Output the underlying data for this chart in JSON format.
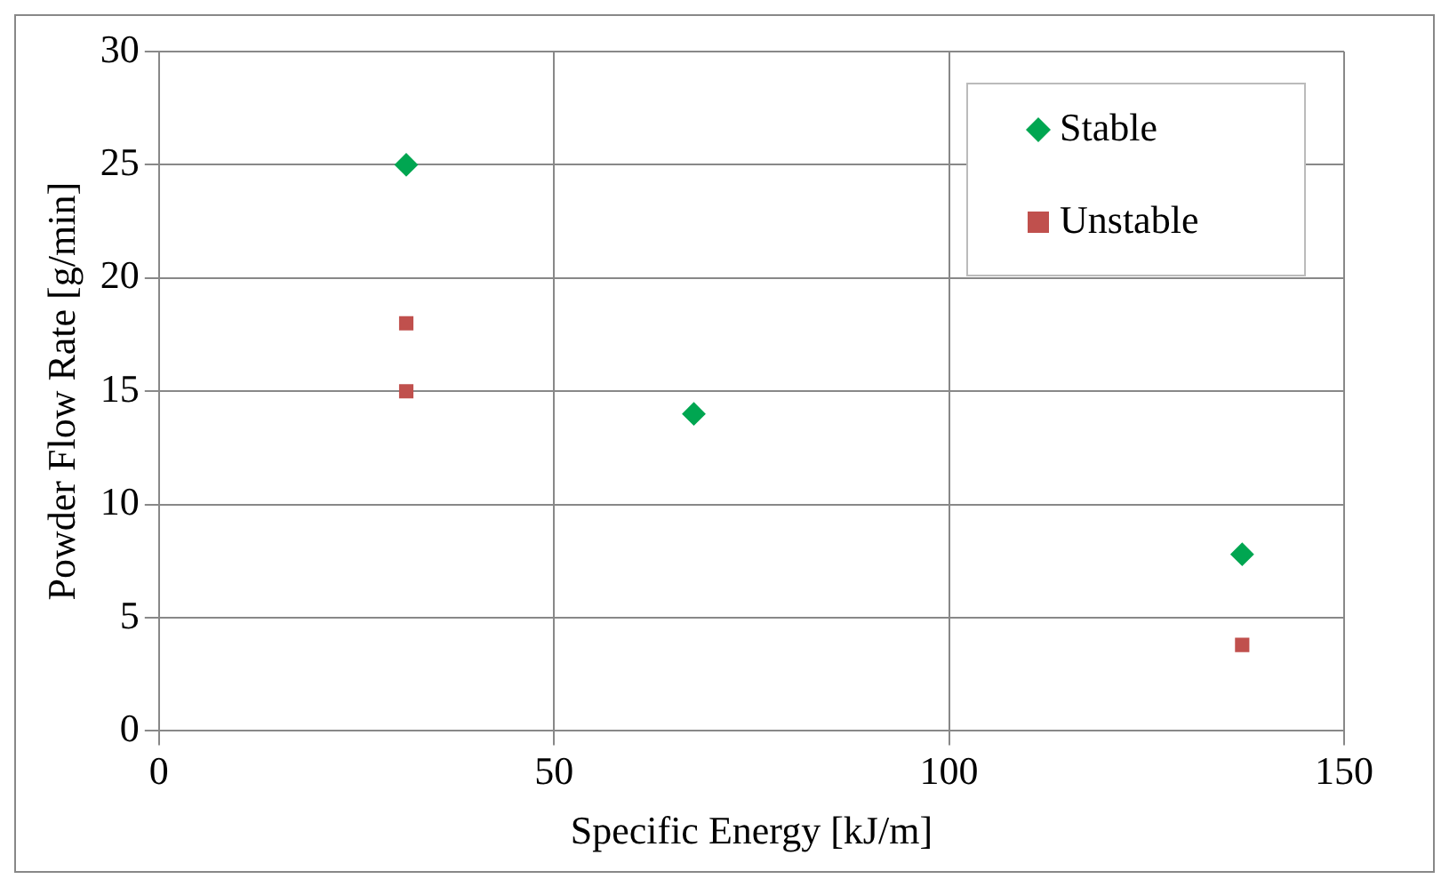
{
  "chart_data": {
    "type": "scatter",
    "xlabel": "Specific Energy [kJ/m]",
    "ylabel": "Powder Flow Rate [g/min]",
    "xlim": [
      0,
      150
    ],
    "xticks": [
      0,
      50,
      100,
      150
    ],
    "ylim": [
      0,
      30
    ],
    "yticks": [
      0,
      5,
      10,
      15,
      20,
      25,
      30
    ],
    "grid": true,
    "legend": "top right",
    "series": [
      {
        "name": "Stable",
        "color": "#00a651",
        "marker": "diamond",
        "x": [
          31.3,
          67.7,
          137.1
        ],
        "values": [
          25,
          14,
          7.8
        ]
      },
      {
        "name": "Unstable",
        "color": "#c0504d",
        "marker": "square",
        "x": [
          31.3,
          31.3,
          137.1
        ],
        "values": [
          18,
          15,
          3.8
        ]
      }
    ]
  }
}
